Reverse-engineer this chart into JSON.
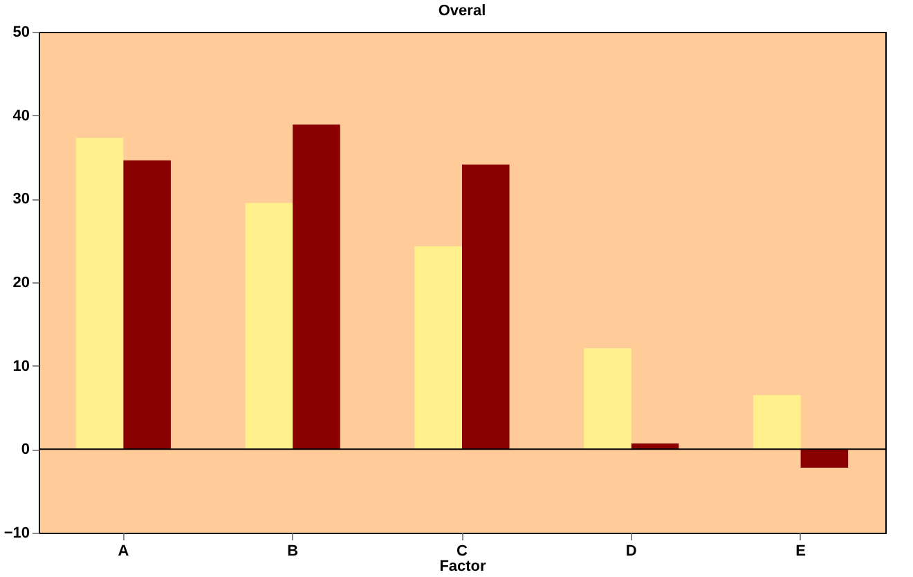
{
  "chart_data": {
    "type": "bar",
    "title": "Overal",
    "xlabel": "Factor",
    "categories": [
      "A",
      "B",
      "C",
      "D",
      "E"
    ],
    "series": [
      {
        "color": "#fff08c",
        "values": [
          37.3,
          29.5,
          24.3,
          12.1,
          6.5
        ]
      },
      {
        "color": "#8b0000",
        "values": [
          34.6,
          38.9,
          34.1,
          0.7,
          -2.2
        ]
      }
    ],
    "ylim": [
      -10,
      50
    ],
    "yticks": [
      -10,
      0,
      10,
      20,
      30,
      40,
      50
    ],
    "ref_lines": [
      {
        "axis": "y",
        "value": 0,
        "color": "#000000"
      }
    ],
    "grid": false
  }
}
